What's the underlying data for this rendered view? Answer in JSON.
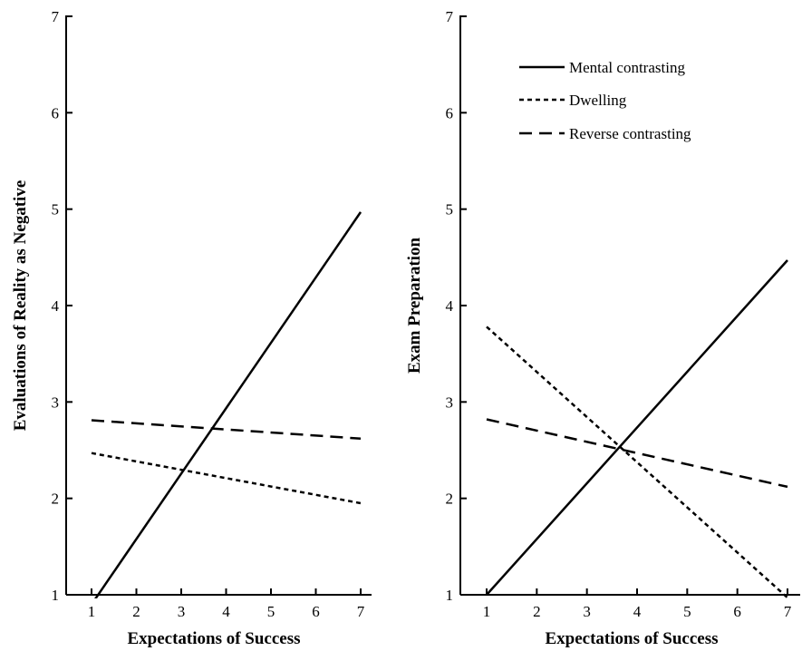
{
  "chart_data": [
    {
      "type": "line",
      "xlabel": "Expectations of Success",
      "ylabel": "Evaluations of Reality as Negative",
      "xlim": [
        1,
        7
      ],
      "ylim": [
        1,
        7
      ],
      "x_ticks": [
        1,
        2,
        3,
        4,
        5,
        6,
        7
      ],
      "y_ticks": [
        1,
        2,
        3,
        4,
        5,
        6,
        7
      ],
      "series": [
        {
          "name": "Mental contrasting",
          "style": "solid",
          "x": [
            1,
            7
          ],
          "y": [
            0.9,
            4.97
          ]
        },
        {
          "name": "Dwelling",
          "style": "dotted",
          "x": [
            1,
            7
          ],
          "y": [
            2.47,
            1.95
          ]
        },
        {
          "name": "Reverse contrasting",
          "style": "dashed",
          "x": [
            1,
            7
          ],
          "y": [
            2.81,
            2.62
          ]
        }
      ]
    },
    {
      "type": "line",
      "xlabel": "Expectations of Success",
      "ylabel": "Exam Preparation",
      "xlim": [
        1,
        7
      ],
      "ylim": [
        1,
        7
      ],
      "x_ticks": [
        1,
        2,
        3,
        4,
        5,
        6,
        7
      ],
      "y_ticks": [
        1,
        2,
        3,
        4,
        5,
        6,
        7
      ],
      "legend": {
        "position": "top-right",
        "entries": [
          "Mental contrasting",
          "Dwelling",
          "Reverse contrasting"
        ]
      },
      "series": [
        {
          "name": "Mental contrasting",
          "style": "solid",
          "x": [
            1,
            7
          ],
          "y": [
            1.0,
            4.47
          ]
        },
        {
          "name": "Dwelling",
          "style": "dotted",
          "x": [
            1,
            7
          ],
          "y": [
            3.78,
            0.97
          ]
        },
        {
          "name": "Reverse contrasting",
          "style": "dashed",
          "x": [
            1,
            7
          ],
          "y": [
            2.82,
            2.12
          ]
        }
      ]
    }
  ]
}
